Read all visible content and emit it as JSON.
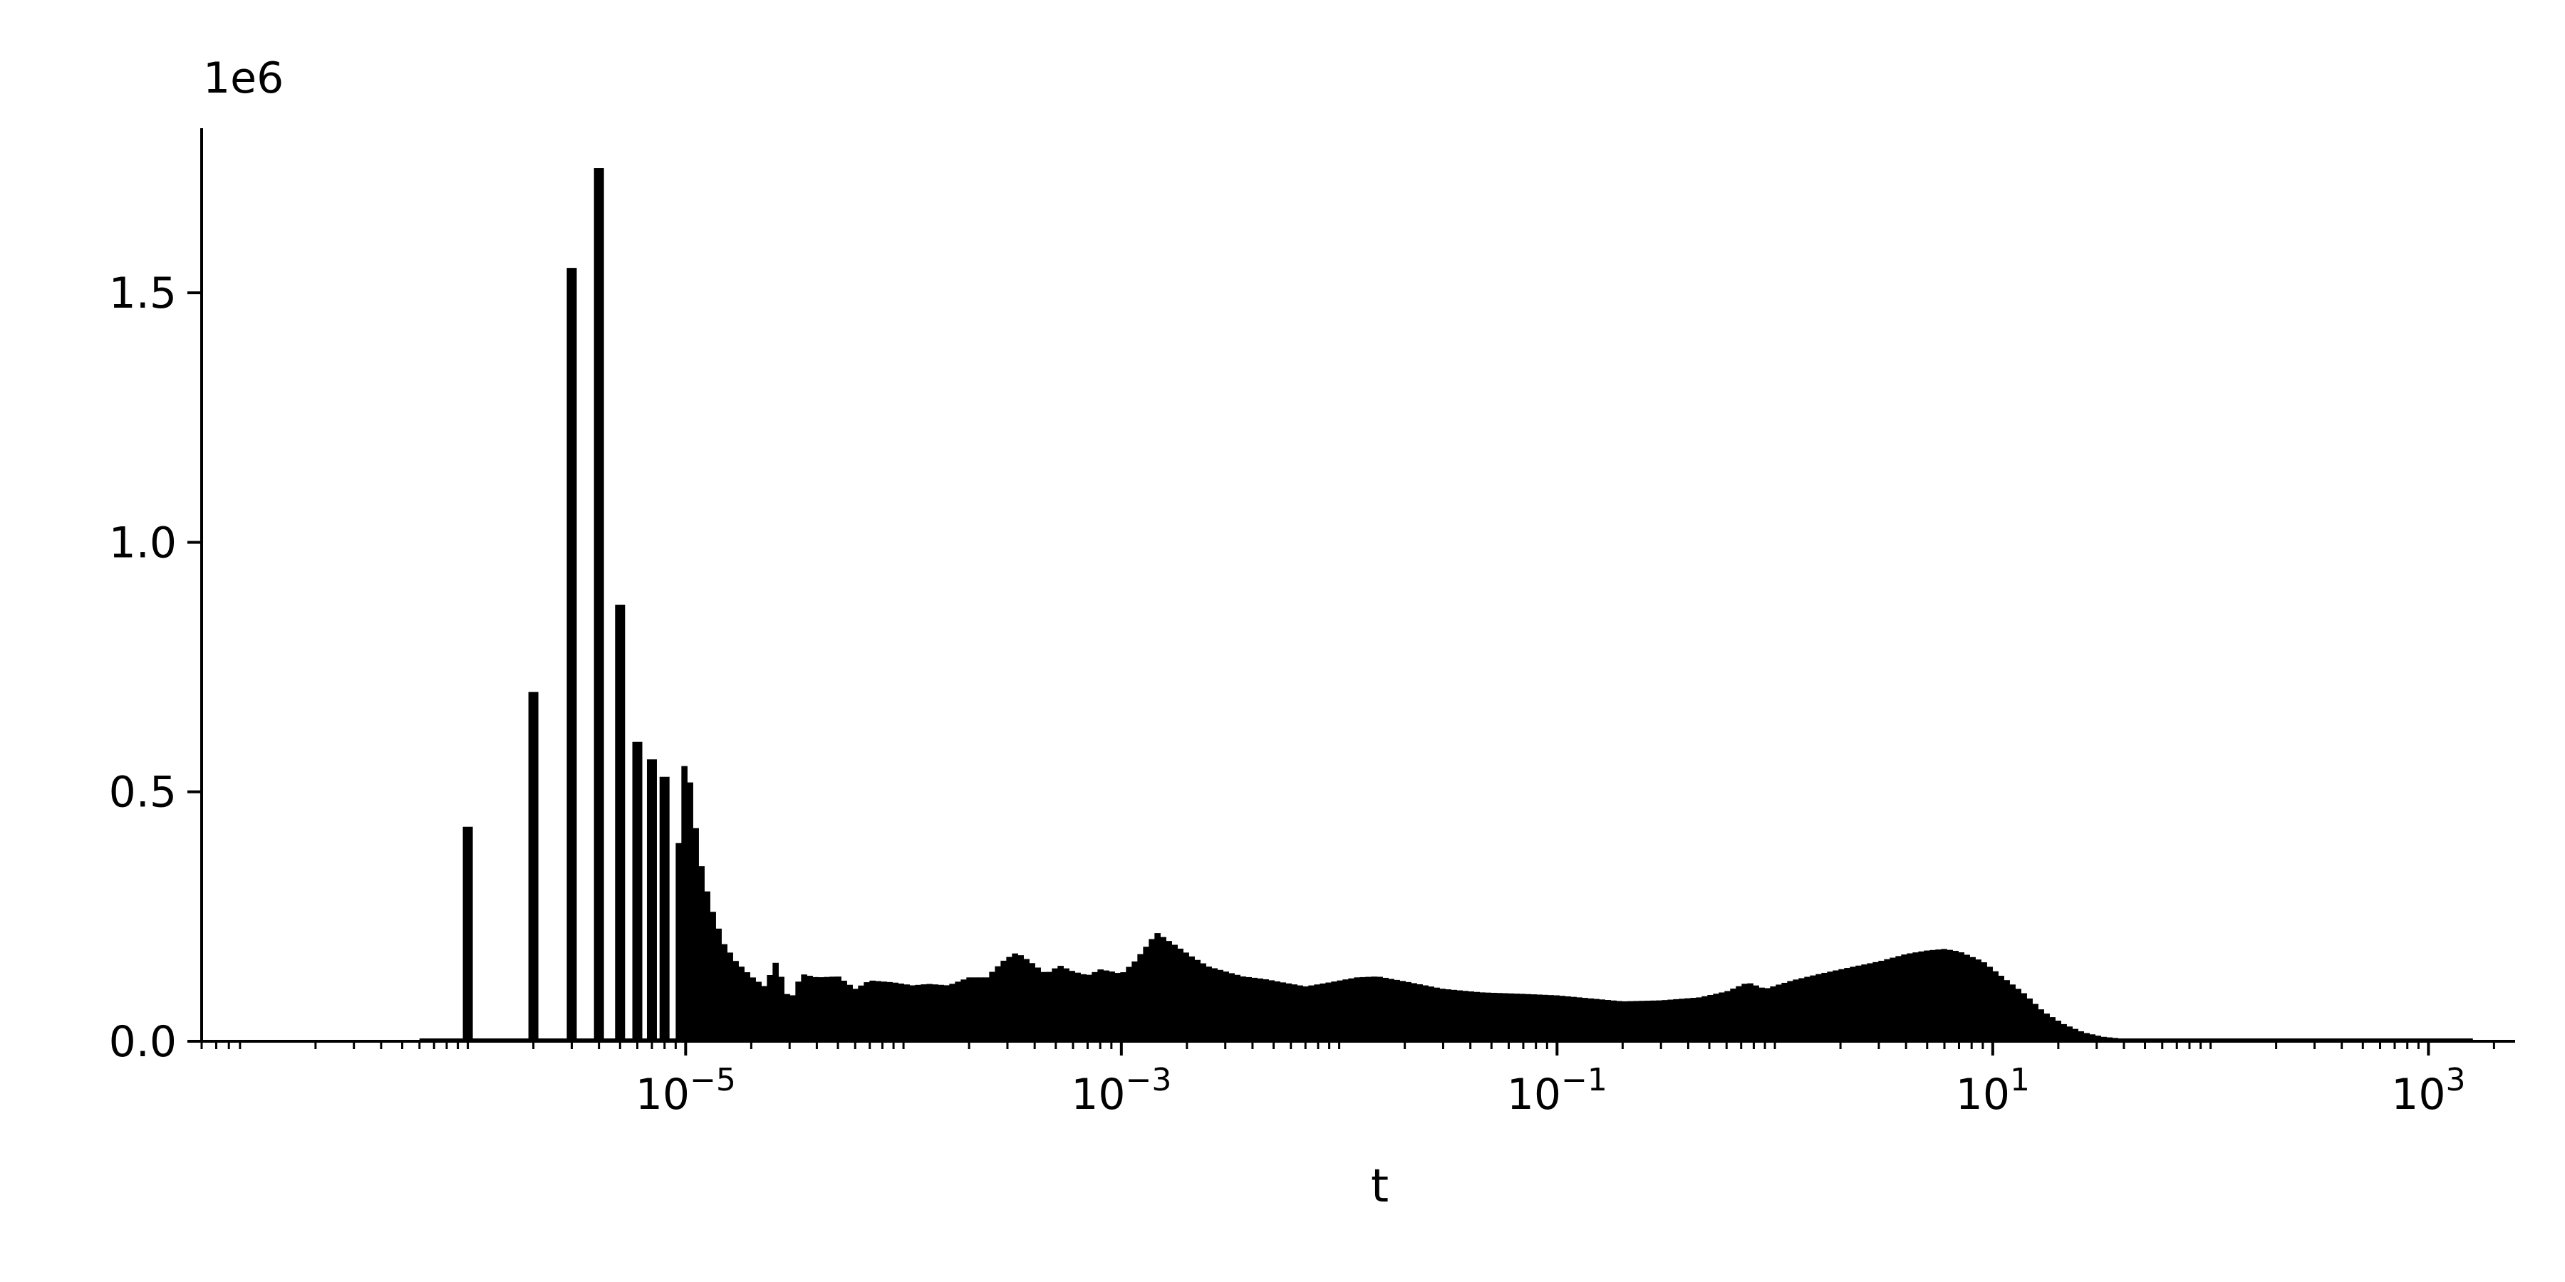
{
  "chart_data": {
    "type": "bar",
    "title": "",
    "xlabel": "t",
    "ylabel": "",
    "x_scale": "log",
    "xlim": [
      6e-08,
      2500
    ],
    "ylim": [
      0,
      1830000
    ],
    "y_offset_label": "1e6",
    "grid": false,
    "x_ticks": [
      {
        "value": 1e-05,
        "base": "10",
        "exp": "−5"
      },
      {
        "value": 0.001,
        "base": "10",
        "exp": "−3"
      },
      {
        "value": 0.1,
        "base": "10",
        "exp": "−1"
      },
      {
        "value": 10,
        "base": "10",
        "exp": "1"
      },
      {
        "value": 1000,
        "base": "10",
        "exp": "3"
      }
    ],
    "y_ticks": [
      {
        "value": 0,
        "label": "0.0"
      },
      {
        "value": 500000,
        "label": "0.5"
      },
      {
        "value": 1000000,
        "label": "1.0"
      },
      {
        "value": 1500000,
        "label": "1.5"
      }
    ],
    "spike_bars": [
      {
        "t": 1e-06,
        "count": 430000
      },
      {
        "t": 2e-06,
        "count": 700000
      },
      {
        "t": 3e-06,
        "count": 1550000
      },
      {
        "t": 4e-06,
        "count": 1750000
      },
      {
        "t": 5e-06,
        "count": 875000
      },
      {
        "t": 6e-06,
        "count": 600000
      },
      {
        "t": 7e-06,
        "count": 565000
      },
      {
        "t": 8e-06,
        "count": 530000
      }
    ],
    "continuum_points": [
      [
        9e-06,
        320000
      ],
      [
        1e-05,
        590000
      ],
      [
        1.1e-05,
        440000
      ],
      [
        1.2e-05,
        330000
      ],
      [
        1.35e-05,
        250000
      ],
      [
        1.5e-05,
        195000
      ],
      [
        1.7e-05,
        160000
      ],
      [
        2e-05,
        130000
      ],
      [
        2.3e-05,
        110000
      ],
      [
        2.6e-05,
        160000
      ],
      [
        3e-05,
        78000
      ],
      [
        3.4e-05,
        135000
      ],
      [
        4e-05,
        128000
      ],
      [
        5e-05,
        130000
      ],
      [
        6e-05,
        105000
      ],
      [
        7e-05,
        122000
      ],
      [
        9e-05,
        118000
      ],
      [
        0.00011,
        112000
      ],
      [
        0.00013,
        115000
      ],
      [
        0.00016,
        112000
      ],
      [
        0.0002,
        128000
      ],
      [
        0.00024,
        128000
      ],
      [
        0.00029,
        163000
      ],
      [
        0.00033,
        178000
      ],
      [
        0.00038,
        160000
      ],
      [
        0.00045,
        135000
      ],
      [
        0.00052,
        152000
      ],
      [
        0.0006,
        140000
      ],
      [
        0.0007,
        132000
      ],
      [
        0.0008,
        144000
      ],
      [
        0.0009,
        140000
      ],
      [
        0.001,
        135000
      ],
      [
        0.00115,
        160000
      ],
      [
        0.0013,
        190000
      ],
      [
        0.00145,
        218000
      ],
      [
        0.0016,
        205000
      ],
      [
        0.0018,
        190000
      ],
      [
        0.0021,
        170000
      ],
      [
        0.0025,
        150000
      ],
      [
        0.003,
        140000
      ],
      [
        0.0036,
        130000
      ],
      [
        0.0045,
        125000
      ],
      [
        0.0055,
        118000
      ],
      [
        0.007,
        110000
      ],
      [
        0.009,
        118000
      ],
      [
        0.012,
        128000
      ],
      [
        0.015,
        130000
      ],
      [
        0.02,
        120000
      ],
      [
        0.03,
        105000
      ],
      [
        0.045,
        98000
      ],
      [
        0.07,
        95000
      ],
      [
        0.1,
        92000
      ],
      [
        0.15,
        85000
      ],
      [
        0.2,
        80000
      ],
      [
        0.3,
        82000
      ],
      [
        0.45,
        88000
      ],
      [
        0.6,
        100000
      ],
      [
        0.75,
        118000
      ],
      [
        0.9,
        105000
      ],
      [
        1.2,
        122000
      ],
      [
        1.6,
        135000
      ],
      [
        2.2,
        148000
      ],
      [
        3,
        160000
      ],
      [
        4,
        175000
      ],
      [
        5,
        182000
      ],
      [
        6,
        185000
      ],
      [
        7,
        180000
      ],
      [
        9,
        160000
      ],
      [
        11,
        130000
      ],
      [
        14,
        95000
      ],
      [
        17,
        60000
      ],
      [
        21,
        35000
      ],
      [
        26,
        18000
      ],
      [
        32,
        9000
      ],
      [
        40,
        5000
      ],
      [
        55,
        2500
      ],
      [
        80,
        1200
      ],
      [
        150,
        500
      ],
      [
        400,
        200
      ],
      [
        1000,
        100
      ],
      [
        2000,
        0
      ]
    ]
  }
}
